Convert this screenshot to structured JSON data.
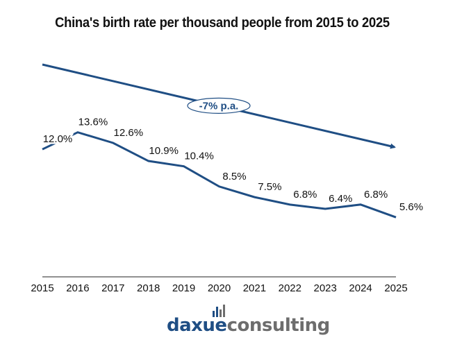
{
  "chart_data": {
    "type": "line",
    "title": "China's birth rate per thousand people from 2015 to 2025",
    "xlabel": "",
    "ylabel": "",
    "categories": [
      "2015",
      "2016",
      "2017",
      "2018",
      "2019",
      "2020",
      "2021",
      "2022",
      "2023",
      "2024",
      "2025"
    ],
    "series": [
      {
        "name": "Birth rate (per thousand)",
        "values": [
          12.0,
          13.6,
          12.6,
          10.9,
          10.4,
          8.5,
          7.5,
          6.8,
          6.4,
          6.8,
          5.6
        ],
        "labels": [
          "12.0%",
          "13.6%",
          "12.6%",
          "10.9%",
          "10.4%",
          "8.5%",
          "7.5%",
          "6.8%",
          "6.4%",
          "6.8%",
          "5.6%"
        ],
        "color": "#1f4e84"
      }
    ],
    "ylim": [
      0,
      22
    ],
    "grid": false,
    "legend": "none",
    "annotations": [
      {
        "type": "trend-arrow",
        "text": "-7% p.a.",
        "from": "2015",
        "to": "2025"
      }
    ]
  },
  "branding": {
    "logo_part1": "daxue",
    "logo_part2": "consulting",
    "colors": {
      "primary": "#1f4e84",
      "secondary": "#6d6d6d"
    }
  }
}
